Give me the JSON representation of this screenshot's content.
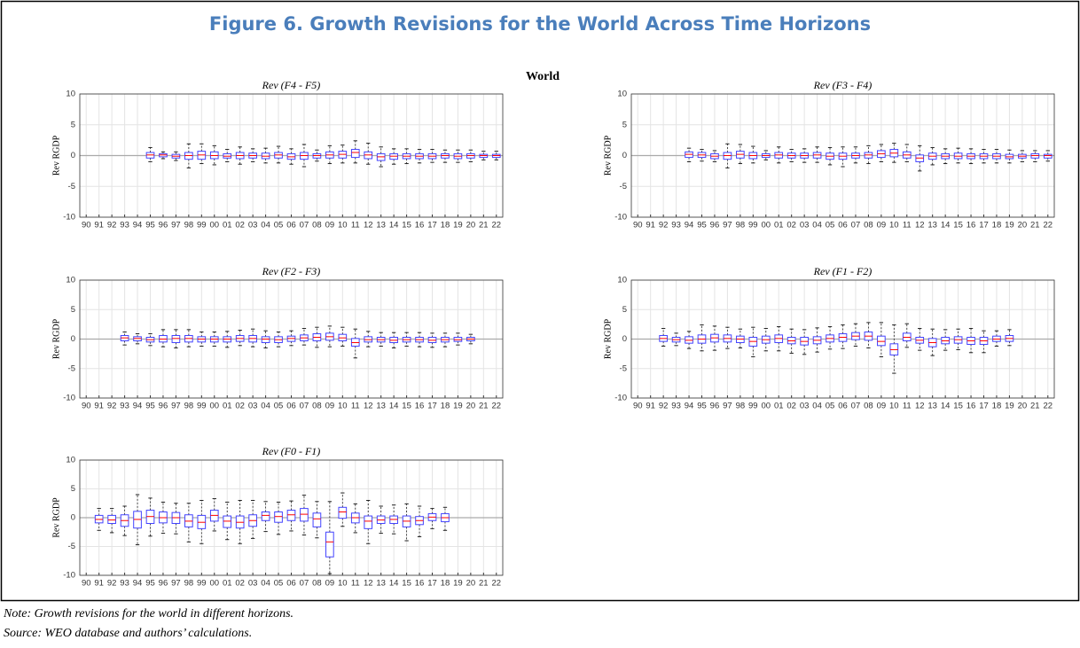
{
  "figure_title": "Figure 6. Growth Revisions for the World Across Time Horizons",
  "suptitle": "World",
  "note": "Note: Growth revisions for the world in different horizons.",
  "source": "Source: WEO database and authors’ calculations.",
  "chart_data": [
    {
      "type": "box",
      "title": "Rev (F4 - F5)",
      "ylabel": "Rev RGDP",
      "ylim": [
        -10,
        10
      ],
      "yticks": [
        -10,
        -5,
        0,
        5,
        10
      ],
      "grid": true,
      "box_color": "#4444ff",
      "median_color": "#ff0000",
      "categories": [
        "90",
        "91",
        "92",
        "93",
        "94",
        "95",
        "96",
        "97",
        "98",
        "99",
        "00",
        "01",
        "02",
        "03",
        "04",
        "05",
        "06",
        "07",
        "08",
        "09",
        "10",
        "11",
        "12",
        "13",
        "14",
        "15",
        "16",
        "17",
        "18",
        "19",
        "20",
        "21",
        "22"
      ],
      "boxes": [
        null,
        null,
        null,
        null,
        null,
        [
          -1,
          -0.4,
          0.1,
          0.5,
          1.3
        ],
        [
          -0.5,
          -0.2,
          0.1,
          0.3,
          0.6
        ],
        [
          -0.8,
          -0.4,
          -0.1,
          0.2,
          0.6
        ],
        [
          -2,
          -0.6,
          0,
          0.5,
          1.9
        ],
        [
          -1.3,
          -0.6,
          0.1,
          0.7,
          1.9
        ],
        [
          -1.5,
          -0.5,
          0,
          0.6,
          1.6
        ],
        [
          -1,
          -0.4,
          -0.1,
          0.3,
          1
        ],
        [
          -1.4,
          -0.5,
          0,
          0.5,
          1.4
        ],
        [
          -1,
          -0.4,
          0,
          0.4,
          1.1
        ],
        [
          -1.2,
          -0.5,
          -0.1,
          0.4,
          1.2
        ],
        [
          -1.2,
          -0.4,
          0.1,
          0.5,
          1.5
        ],
        [
          -1.4,
          -0.6,
          -0.2,
          0.3,
          1.1
        ],
        [
          -1.8,
          -0.6,
          0,
          0.5,
          1.8
        ],
        [
          -0.9,
          -0.4,
          0,
          0.3,
          0.9
        ],
        [
          -1.3,
          -0.4,
          0.1,
          0.6,
          1.6
        ],
        [
          -1.2,
          -0.4,
          0.2,
          0.7,
          1.7
        ],
        [
          -1.2,
          -0.3,
          0.5,
          1,
          2.4
        ],
        [
          -1.4,
          -0.5,
          0.1,
          0.6,
          2
        ],
        [
          -1.8,
          -0.8,
          -0.2,
          0.3,
          1.4
        ],
        [
          -1.4,
          -0.6,
          -0.1,
          0.3,
          1.1
        ],
        [
          -1.3,
          -0.5,
          -0.1,
          0.3,
          1.1
        ],
        [
          -1.2,
          -0.5,
          -0.1,
          0.3,
          1
        ],
        [
          -1.1,
          -0.5,
          -0.1,
          0.3,
          1
        ],
        [
          -1.1,
          -0.4,
          0,
          0.3,
          0.9
        ],
        [
          -1.1,
          -0.5,
          -0.1,
          0.3,
          0.9
        ],
        [
          -1,
          -0.4,
          0,
          0.3,
          0.9
        ],
        [
          -0.7,
          -0.3,
          0,
          0.2,
          0.7
        ],
        [
          -0.7,
          -0.3,
          0,
          0.2,
          0.7
        ]
      ]
    },
    {
      "type": "box",
      "title": "Rev (F3 - F4)",
      "ylabel": "Rev RGDP",
      "ylim": [
        -10,
        10
      ],
      "yticks": [
        -10,
        -5,
        0,
        5,
        10
      ],
      "grid": true,
      "box_color": "#4444ff",
      "median_color": "#ff0000",
      "categories": [
        "90",
        "91",
        "92",
        "93",
        "94",
        "95",
        "96",
        "97",
        "98",
        "99",
        "00",
        "01",
        "02",
        "03",
        "04",
        "05",
        "06",
        "07",
        "08",
        "09",
        "10",
        "11",
        "12",
        "13",
        "14",
        "15",
        "16",
        "17",
        "18",
        "19",
        "20",
        "21",
        "22"
      ],
      "boxes": [
        null,
        null,
        null,
        null,
        [
          -1,
          -0.3,
          0.2,
          0.6,
          1.2
        ],
        [
          -0.9,
          -0.3,
          0.1,
          0.5,
          1
        ],
        [
          -1,
          -0.5,
          -0.1,
          0.3,
          0.8
        ],
        [
          -2,
          -0.6,
          0,
          0.5,
          1.9
        ],
        [
          -1.3,
          -0.4,
          0.2,
          0.7,
          1.8
        ],
        [
          -1.2,
          -0.5,
          0,
          0.5,
          1.5
        ],
        [
          -0.7,
          -0.3,
          0,
          0.3,
          0.8
        ],
        [
          -1.2,
          -0.4,
          0.1,
          0.5,
          1.4
        ],
        [
          -1,
          -0.4,
          0,
          0.4,
          1
        ],
        [
          -1.1,
          -0.4,
          0,
          0.4,
          1.1
        ],
        [
          -1.1,
          -0.4,
          0.1,
          0.5,
          1.4
        ],
        [
          -1.5,
          -0.6,
          -0.1,
          0.4,
          1.3
        ],
        [
          -1.8,
          -0.6,
          -0.1,
          0.4,
          1.4
        ],
        [
          -1.2,
          -0.4,
          0,
          0.4,
          1.4
        ],
        [
          -1.3,
          -0.4,
          0.1,
          0.5,
          1.6
        ],
        [
          -1,
          -0.3,
          0.3,
          0.8,
          1.8
        ],
        [
          -1.1,
          -0.2,
          0.4,
          1,
          2
        ],
        [
          -1,
          -0.4,
          0.1,
          0.6,
          1.8
        ],
        [
          -2.5,
          -1,
          -0.4,
          0.1,
          1.6
        ],
        [
          -1.5,
          -0.6,
          -0.1,
          0.4,
          1.3
        ],
        [
          -1.3,
          -0.5,
          -0.1,
          0.3,
          1.1
        ],
        [
          -1.2,
          -0.5,
          -0.1,
          0.4,
          1.2
        ],
        [
          -1.3,
          -0.5,
          -0.1,
          0.3,
          1.1
        ],
        [
          -1.2,
          -0.5,
          -0.1,
          0.3,
          1
        ],
        [
          -1.2,
          -0.5,
          -0.1,
          0.3,
          1
        ],
        [
          -1.2,
          -0.5,
          -0.2,
          0.2,
          0.9
        ],
        [
          -1,
          -0.4,
          -0.1,
          0.2,
          0.8
        ],
        [
          -1,
          -0.4,
          0,
          0.3,
          0.8
        ],
        [
          -0.9,
          -0.4,
          0,
          0.2,
          0.8
        ]
      ]
    },
    {
      "type": "box",
      "title": "Rev (F2 - F3)",
      "ylabel": "Rev RGDP",
      "ylim": [
        -10,
        10
      ],
      "yticks": [
        -10,
        -5,
        0,
        5,
        10
      ],
      "grid": true,
      "box_color": "#4444ff",
      "median_color": "#ff0000",
      "categories": [
        "90",
        "91",
        "92",
        "93",
        "94",
        "95",
        "96",
        "97",
        "98",
        "99",
        "00",
        "01",
        "02",
        "03",
        "04",
        "05",
        "06",
        "07",
        "08",
        "09",
        "10",
        "11",
        "12",
        "13",
        "14",
        "15",
        "16",
        "17",
        "18",
        "19",
        "20",
        "21",
        "22"
      ],
      "boxes": [
        null,
        null,
        null,
        [
          -1,
          -0.3,
          0.2,
          0.6,
          1.2
        ],
        [
          -0.8,
          -0.3,
          0.1,
          0.4,
          0.9
        ],
        [
          -1.1,
          -0.5,
          -0.1,
          0.3,
          0.9
        ],
        [
          -1.3,
          -0.5,
          0,
          0.6,
          1.6
        ],
        [
          -1.5,
          -0.6,
          0.1,
          0.6,
          1.6
        ],
        [
          -1.3,
          -0.5,
          0.1,
          0.6,
          1.6
        ],
        [
          -1.2,
          -0.5,
          0,
          0.4,
          1.2
        ],
        [
          -1.2,
          -0.5,
          0,
          0.4,
          1.2
        ],
        [
          -1.4,
          -0.5,
          0,
          0.4,
          1.3
        ],
        [
          -1.1,
          -0.4,
          0.1,
          0.6,
          1.5
        ],
        [
          -1.3,
          -0.5,
          0.1,
          0.6,
          1.7
        ],
        [
          -1.5,
          -0.6,
          0,
          0.4,
          1.4
        ],
        [
          -1.3,
          -0.6,
          -0.1,
          0.4,
          1.2
        ],
        [
          -1.1,
          -0.4,
          0.1,
          0.5,
          1.4
        ],
        [
          -1,
          -0.3,
          0.2,
          0.7,
          1.8
        ],
        [
          -1.4,
          -0.3,
          0.3,
          0.9,
          2
        ],
        [
          -1.3,
          -0.2,
          0.4,
          1,
          2.2
        ],
        [
          -1.2,
          -0.3,
          0.2,
          0.8,
          2
        ],
        [
          -3.2,
          -1.2,
          -0.6,
          0.1,
          1.7
        ],
        [
          -1.3,
          -0.5,
          -0.1,
          0.4,
          1.3
        ],
        [
          -1.2,
          -0.5,
          -0.1,
          0.3,
          1.1
        ],
        [
          -1.5,
          -0.6,
          -0.2,
          0.3,
          1.1
        ],
        [
          -1.2,
          -0.5,
          -0.1,
          0.3,
          1.1
        ],
        [
          -1.3,
          -0.5,
          -0.1,
          0.3,
          1.1
        ],
        [
          -1.4,
          -0.6,
          -0.2,
          0.3,
          1
        ],
        [
          -1.3,
          -0.5,
          -0.1,
          0.3,
          1
        ],
        [
          -1,
          -0.4,
          -0.1,
          0.3,
          1
        ],
        [
          -0.8,
          -0.3,
          0,
          0.3,
          0.8
        ],
        null,
        null
      ]
    },
    {
      "type": "box",
      "title": "Rev (F1 - F2)",
      "ylabel": "Rev RGDP",
      "ylim": [
        -10,
        10
      ],
      "yticks": [
        -10,
        -5,
        0,
        5,
        10
      ],
      "grid": true,
      "box_color": "#4444ff",
      "median_color": "#ff0000",
      "categories": [
        "90",
        "91",
        "92",
        "93",
        "94",
        "95",
        "96",
        "97",
        "98",
        "99",
        "00",
        "01",
        "02",
        "03",
        "04",
        "05",
        "06",
        "07",
        "08",
        "09",
        "10",
        "11",
        "12",
        "13",
        "14",
        "15",
        "16",
        "17",
        "18",
        "19",
        "20",
        "21",
        "22"
      ],
      "boxes": [
        null,
        null,
        [
          -1.2,
          -0.4,
          0.1,
          0.6,
          1.8
        ],
        [
          -1.1,
          -0.5,
          -0.1,
          0.3,
          1
        ],
        [
          -1.6,
          -0.7,
          -0.2,
          0.4,
          1.3
        ],
        [
          -2,
          -0.7,
          0,
          0.7,
          2.4
        ],
        [
          -1.9,
          -0.5,
          0.2,
          0.8,
          2.2
        ],
        [
          -1.6,
          -0.5,
          0.1,
          0.7,
          2
        ],
        [
          -1.5,
          -0.6,
          0,
          0.5,
          1.7
        ],
        [
          -3,
          -1.2,
          -0.4,
          0.3,
          2
        ],
        [
          -2,
          -0.7,
          -0.1,
          0.5,
          1.8
        ],
        [
          -2,
          -0.6,
          0.1,
          0.7,
          2.1
        ],
        [
          -2.4,
          -0.8,
          -0.3,
          0.3,
          1.7
        ],
        [
          -2.6,
          -1,
          -0.4,
          0.3,
          1.6
        ],
        [
          -2.2,
          -0.8,
          -0.2,
          0.4,
          1.9
        ],
        [
          -1.7,
          -0.5,
          0.1,
          0.7,
          2.1
        ],
        [
          -1.6,
          -0.4,
          0.3,
          0.9,
          2.4
        ],
        [
          -1.2,
          -0.1,
          0.5,
          1.1,
          2.6
        ],
        [
          -1.5,
          -0.2,
          0.5,
          1.2,
          2.8
        ],
        [
          -3,
          -1.1,
          -0.4,
          0.5,
          2.8
        ],
        [
          -5.8,
          -2.7,
          -1.8,
          -0.8,
          2.4
        ],
        [
          -1.4,
          -0.3,
          0.3,
          1,
          2.6
        ],
        [
          -1.9,
          -0.7,
          -0.2,
          0.3,
          1.8
        ],
        [
          -2.8,
          -1.3,
          -0.6,
          0.1,
          1.7
        ],
        [
          -1.9,
          -0.8,
          -0.3,
          0.3,
          1.6
        ],
        [
          -1.8,
          -0.7,
          -0.1,
          0.4,
          1.7
        ],
        [
          -2.3,
          -0.9,
          -0.3,
          0.3,
          1.8
        ],
        [
          -2.3,
          -0.9,
          -0.3,
          0.3,
          1.4
        ],
        [
          -1.2,
          -0.4,
          0,
          0.5,
          1.4
        ],
        [
          -1.1,
          -0.4,
          0.1,
          0.6,
          1.6
        ],
        null,
        null,
        null
      ]
    },
    {
      "type": "box",
      "title": "Rev (F0 - F1)",
      "ylabel": "Rev RGDP",
      "ylim": [
        -10,
        10
      ],
      "yticks": [
        -10,
        -5,
        0,
        5,
        10
      ],
      "grid": true,
      "box_color": "#4444ff",
      "median_color": "#ff0000",
      "categories": [
        "90",
        "91",
        "92",
        "93",
        "94",
        "95",
        "96",
        "97",
        "98",
        "99",
        "00",
        "01",
        "02",
        "03",
        "04",
        "05",
        "06",
        "07",
        "08",
        "09",
        "10",
        "11",
        "12",
        "13",
        "14",
        "15",
        "16",
        "17",
        "18",
        "19",
        "20",
        "21",
        "22"
      ],
      "boxes": [
        null,
        [
          -2.2,
          -0.9,
          -0.3,
          0.4,
          1.6
        ],
        [
          -2.6,
          -1,
          -0.4,
          0.4,
          1.6
        ],
        [
          -3.1,
          -1.5,
          -0.5,
          0.5,
          2
        ],
        [
          -4.7,
          -1.8,
          -0.3,
          1.1,
          4
        ],
        [
          -3.2,
          -1,
          0.2,
          1.3,
          3.4
        ],
        [
          -2.7,
          -0.9,
          0,
          1,
          2.7
        ],
        [
          -2.8,
          -1,
          0,
          0.9,
          2.5
        ],
        [
          -4.2,
          -1.6,
          -0.6,
          0.5,
          2.5
        ],
        [
          -4.5,
          -1.9,
          -0.8,
          0.4,
          3
        ],
        [
          -2.3,
          -0.6,
          0.4,
          1.3,
          3.3
        ],
        [
          -3.8,
          -1.7,
          -0.6,
          0.3,
          2.7
        ],
        [
          -4.5,
          -1.8,
          -0.8,
          0.3,
          3
        ],
        [
          -3.6,
          -1.5,
          -0.5,
          0.5,
          3
        ],
        [
          -2.4,
          -0.5,
          0.4,
          1,
          2.8
        ],
        [
          -2.9,
          -0.8,
          0.2,
          1,
          2.7
        ],
        [
          -2.3,
          -0.5,
          0.5,
          1.3,
          2.9
        ],
        [
          -3,
          -0.6,
          0.6,
          1.6,
          3.9
        ],
        [
          -3.5,
          -1.6,
          -0.2,
          0.8,
          2.8
        ],
        [
          -9.7,
          -6.8,
          -4.2,
          -2.5,
          2.8
        ],
        [
          -1.5,
          -0.1,
          1,
          1.8,
          4.3
        ],
        [
          -2.6,
          -0.9,
          0,
          0.8,
          2.4
        ],
        [
          -4.5,
          -1.9,
          -0.6,
          0.3,
          3
        ],
        [
          -2.7,
          -1,
          -0.4,
          0.3,
          2
        ],
        [
          -2.8,
          -1,
          -0.3,
          0.3,
          2.2
        ],
        [
          -4,
          -1.6,
          -0.6,
          0.3,
          2.4
        ],
        [
          -3.3,
          -1.2,
          -0.5,
          0.2,
          2
        ],
        [
          -1.9,
          -0.5,
          0.1,
          0.7,
          1.6
        ],
        [
          -2.2,
          -0.7,
          0,
          0.7,
          1.8
        ],
        null,
        null,
        null,
        null
      ]
    }
  ]
}
